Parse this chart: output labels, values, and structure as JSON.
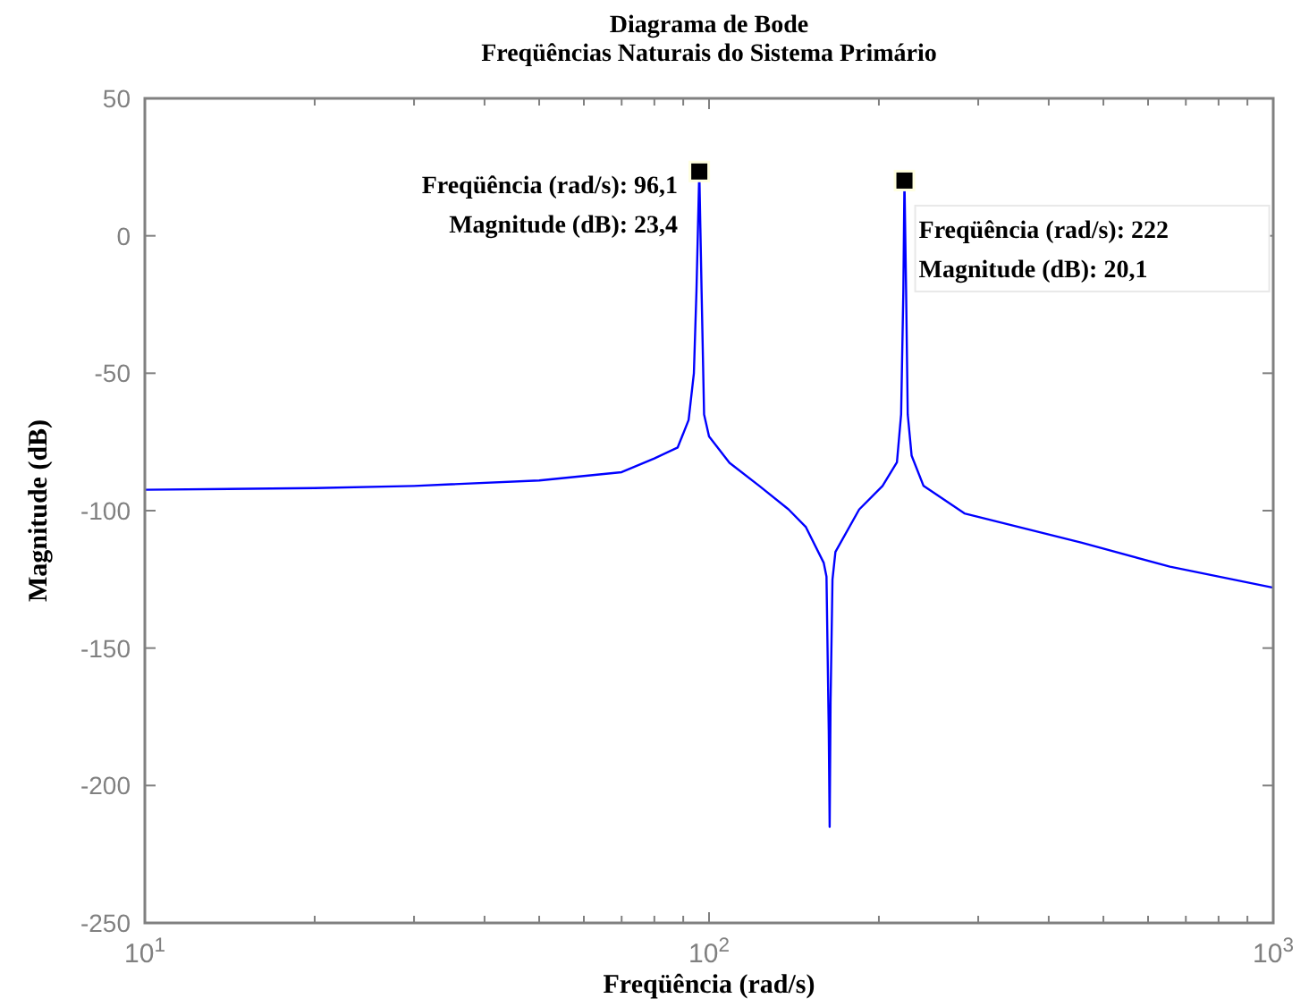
{
  "chart_data": {
    "type": "line",
    "title": "Diagrama de Bode",
    "subtitle": "Freqüências Naturais do Sistema Primário",
    "xlabel": "Freqüência (rad/s)",
    "ylabel": "Magnitude (dB)",
    "log": "x",
    "grid": false,
    "marker": "none",
    "line_style": "solid",
    "xlim": [
      10,
      1000
    ],
    "ylim": [
      -250,
      50
    ],
    "xticks": [
      {
        "value": 10,
        "label": "10$^{1}$"
      },
      {
        "value": 20,
        "label": null
      },
      {
        "value": 30,
        "label": null
      },
      {
        "value": 40,
        "label": null
      },
      {
        "value": 50,
        "label": null
      },
      {
        "value": 60,
        "label": null
      },
      {
        "value": 70,
        "label": null
      },
      {
        "value": 80,
        "label": null
      },
      {
        "value": 90,
        "label": null
      },
      {
        "value": 100,
        "label": "10$^{2}$"
      },
      {
        "value": 200,
        "label": null
      },
      {
        "value": 300,
        "label": null
      },
      {
        "value": 400,
        "label": null
      },
      {
        "value": 500,
        "label": null
      },
      {
        "value": 600,
        "label": null
      },
      {
        "value": 700,
        "label": null
      },
      {
        "value": 800,
        "label": null
      },
      {
        "value": 900,
        "label": null
      },
      {
        "value": 1000,
        "label": "10$^{3}$"
      }
    ],
    "yticks": [
      50,
      0,
      -50,
      -100,
      -150,
      -200,
      -250
    ],
    "series": [
      {
        "color": "#0000ff",
        "x": [
          10,
          20,
          30,
          50,
          70,
          80,
          88,
          92,
          94,
          95,
          96.1,
          97,
          98,
          100,
          108.7,
          122.8,
          138.3,
          148.5,
          159.7,
          161.5,
          163,
          163.6,
          164.2,
          165.5,
          167.5,
          184.5,
          203,
          215.3,
          219,
          221,
          222,
          223.5,
          225,
          228.6,
          240,
          283.6,
          458,
          656,
          1000
        ],
        "values": [
          -92.4,
          -91.8,
          -91,
          -89,
          -86,
          -81,
          -77,
          -67,
          -50,
          -20,
          23.4,
          -20,
          -65,
          -73,
          -82.6,
          -91,
          -99.5,
          -106,
          -119,
          -124,
          -180,
          -215,
          -170,
          -125,
          -115,
          -99.6,
          -91,
          -82.4,
          -65,
          -20,
          20.1,
          -20,
          -65,
          -80,
          -91,
          -101,
          -111.7,
          -120.4,
          -128
        ]
      }
    ],
    "annotations": [
      {
        "text": "Freqüência (rad/s): 96,1\nMagnitude (dB): 23,4",
        "x": 96.1,
        "y": 23.4
      },
      {
        "text": "Freqüência (rad/s): 222\nMagnitude (dB): 20,1",
        "x": 222,
        "y": 20.1
      }
    ]
  }
}
